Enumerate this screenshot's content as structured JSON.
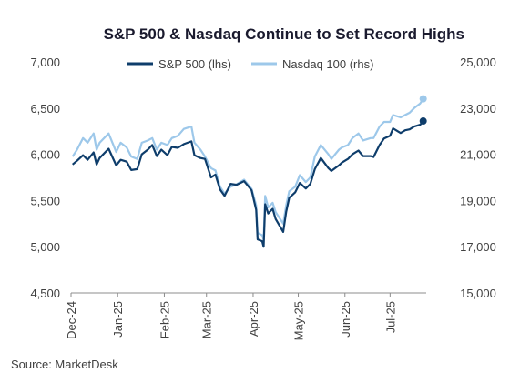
{
  "chart_data": {
    "type": "line",
    "title": "S&P 500 & Nasdaq Continue to Set Record Highs",
    "source": "Source: MarketDesk",
    "x_ticks": [
      "Dec-24",
      "Jan-25",
      "Feb-25",
      "Mar-25",
      "Apr-25",
      "May-25",
      "Jun-25",
      "Jul-25"
    ],
    "x_tick_dates": [
      "2024-12-01",
      "2025-01-01",
      "2025-02-01",
      "2025-03-01",
      "2025-04-01",
      "2025-05-01",
      "2025-06-01",
      "2025-07-01"
    ],
    "xlim": [
      "2024-12-01",
      "2025-07-25"
    ],
    "y_left": {
      "ylim": [
        4500,
        7000
      ],
      "ticks": [
        "4,500",
        "5,000",
        "5,500",
        "6,000",
        "6,500",
        "7,000"
      ],
      "tick_values": [
        4500,
        5000,
        5500,
        6000,
        6500,
        7000
      ]
    },
    "y_right": {
      "ylim": [
        15000,
        25000
      ],
      "ticks": [
        "15,000",
        "17,000",
        "19,000",
        "21,000",
        "23,000",
        "25,000"
      ],
      "tick_values": [
        15000,
        17000,
        19000,
        21000,
        23000,
        25000
      ]
    },
    "legend_placement": "top-center",
    "grid": false,
    "series": [
      {
        "name": "S&P 500 (lhs)",
        "axis": "left",
        "color": "#0e3d6b",
        "end_marker": true,
        "x": [
          "2024-12-02",
          "2024-12-05",
          "2024-12-09",
          "2024-12-12",
          "2024-12-16",
          "2024-12-18",
          "2024-12-20",
          "2024-12-26",
          "2024-12-31",
          "2025-01-03",
          "2025-01-07",
          "2025-01-10",
          "2025-01-14",
          "2025-01-17",
          "2025-01-21",
          "2025-01-24",
          "2025-01-27",
          "2025-01-30",
          "2025-02-03",
          "2025-02-06",
          "2025-02-10",
          "2025-02-14",
          "2025-02-19",
          "2025-02-21",
          "2025-02-25",
          "2025-02-28",
          "2025-03-04",
          "2025-03-07",
          "2025-03-10",
          "2025-03-13",
          "2025-03-17",
          "2025-03-21",
          "2025-03-26",
          "2025-03-31",
          "2025-04-03",
          "2025-04-04",
          "2025-04-07",
          "2025-04-08",
          "2025-04-09",
          "2025-04-11",
          "2025-04-14",
          "2025-04-16",
          "2025-04-21",
          "2025-04-23",
          "2025-04-25",
          "2025-04-29",
          "2025-05-02",
          "2025-05-06",
          "2025-05-09",
          "2025-05-12",
          "2025-05-16",
          "2025-05-21",
          "2025-05-23",
          "2025-05-28",
          "2025-05-30",
          "2025-06-03",
          "2025-06-06",
          "2025-06-10",
          "2025-06-13",
          "2025-06-18",
          "2025-06-20",
          "2025-06-24",
          "2025-06-27",
          "2025-07-01",
          "2025-07-03",
          "2025-07-08",
          "2025-07-11",
          "2025-07-14",
          "2025-07-17",
          "2025-07-21",
          "2025-07-23"
        ],
        "values": [
          5890,
          5930,
          5990,
          5940,
          6020,
          5890,
          5960,
          6060,
          5880,
          5940,
          5920,
          5830,
          5840,
          6000,
          6050,
          6100,
          5980,
          6050,
          5990,
          6080,
          6070,
          6110,
          6140,
          5990,
          5960,
          5950,
          5750,
          5780,
          5620,
          5550,
          5680,
          5670,
          5710,
          5610,
          5400,
          5080,
          5060,
          5000,
          5460,
          5360,
          5410,
          5300,
          5160,
          5380,
          5530,
          5590,
          5690,
          5630,
          5680,
          5840,
          5960,
          5850,
          5820,
          5880,
          5910,
          5950,
          6000,
          6040,
          5980,
          5980,
          5970,
          6100,
          6170,
          6200,
          6280,
          6230,
          6260,
          6270,
          6300,
          6320,
          6360
        ]
      },
      {
        "name": "Nasdaq 100 (rhs)",
        "axis": "right",
        "color": "#9dc8ea",
        "end_marker": true,
        "x": [
          "2024-12-02",
          "2024-12-05",
          "2024-12-09",
          "2024-12-12",
          "2024-12-16",
          "2024-12-18",
          "2024-12-20",
          "2024-12-26",
          "2024-12-31",
          "2025-01-03",
          "2025-01-07",
          "2025-01-10",
          "2025-01-14",
          "2025-01-17",
          "2025-01-21",
          "2025-01-24",
          "2025-01-27",
          "2025-01-30",
          "2025-02-03",
          "2025-02-06",
          "2025-02-10",
          "2025-02-14",
          "2025-02-19",
          "2025-02-21",
          "2025-02-25",
          "2025-02-28",
          "2025-03-04",
          "2025-03-07",
          "2025-03-10",
          "2025-03-13",
          "2025-03-17",
          "2025-03-21",
          "2025-03-26",
          "2025-03-31",
          "2025-04-03",
          "2025-04-04",
          "2025-04-07",
          "2025-04-08",
          "2025-04-09",
          "2025-04-11",
          "2025-04-14",
          "2025-04-16",
          "2025-04-21",
          "2025-04-23",
          "2025-04-25",
          "2025-04-29",
          "2025-05-02",
          "2025-05-06",
          "2025-05-09",
          "2025-05-12",
          "2025-05-16",
          "2025-05-21",
          "2025-05-23",
          "2025-05-28",
          "2025-05-30",
          "2025-06-03",
          "2025-06-06",
          "2025-06-10",
          "2025-06-13",
          "2025-06-18",
          "2025-06-20",
          "2025-06-24",
          "2025-06-27",
          "2025-07-01",
          "2025-07-03",
          "2025-07-08",
          "2025-07-11",
          "2025-07-14",
          "2025-07-17",
          "2025-07-21",
          "2025-07-23"
        ],
        "values": [
          20900,
          21200,
          21700,
          21500,
          21900,
          21200,
          21500,
          21900,
          21100,
          21500,
          21300,
          20900,
          20800,
          21500,
          21600,
          21700,
          21200,
          21500,
          21400,
          21700,
          21800,
          22100,
          22200,
          21500,
          21200,
          20900,
          20400,
          20300,
          19600,
          19300,
          19600,
          19700,
          19900,
          19500,
          18800,
          17600,
          17500,
          17300,
          19200,
          18700,
          18900,
          18500,
          18000,
          18800,
          19400,
          19600,
          20100,
          19800,
          20000,
          20900,
          21400,
          21000,
          20800,
          21200,
          21300,
          21400,
          21700,
          21900,
          21600,
          21700,
          21700,
          22200,
          22400,
          22400,
          22700,
          22600,
          22700,
          22800,
          23000,
          23200,
          23400
        ]
      }
    ]
  }
}
